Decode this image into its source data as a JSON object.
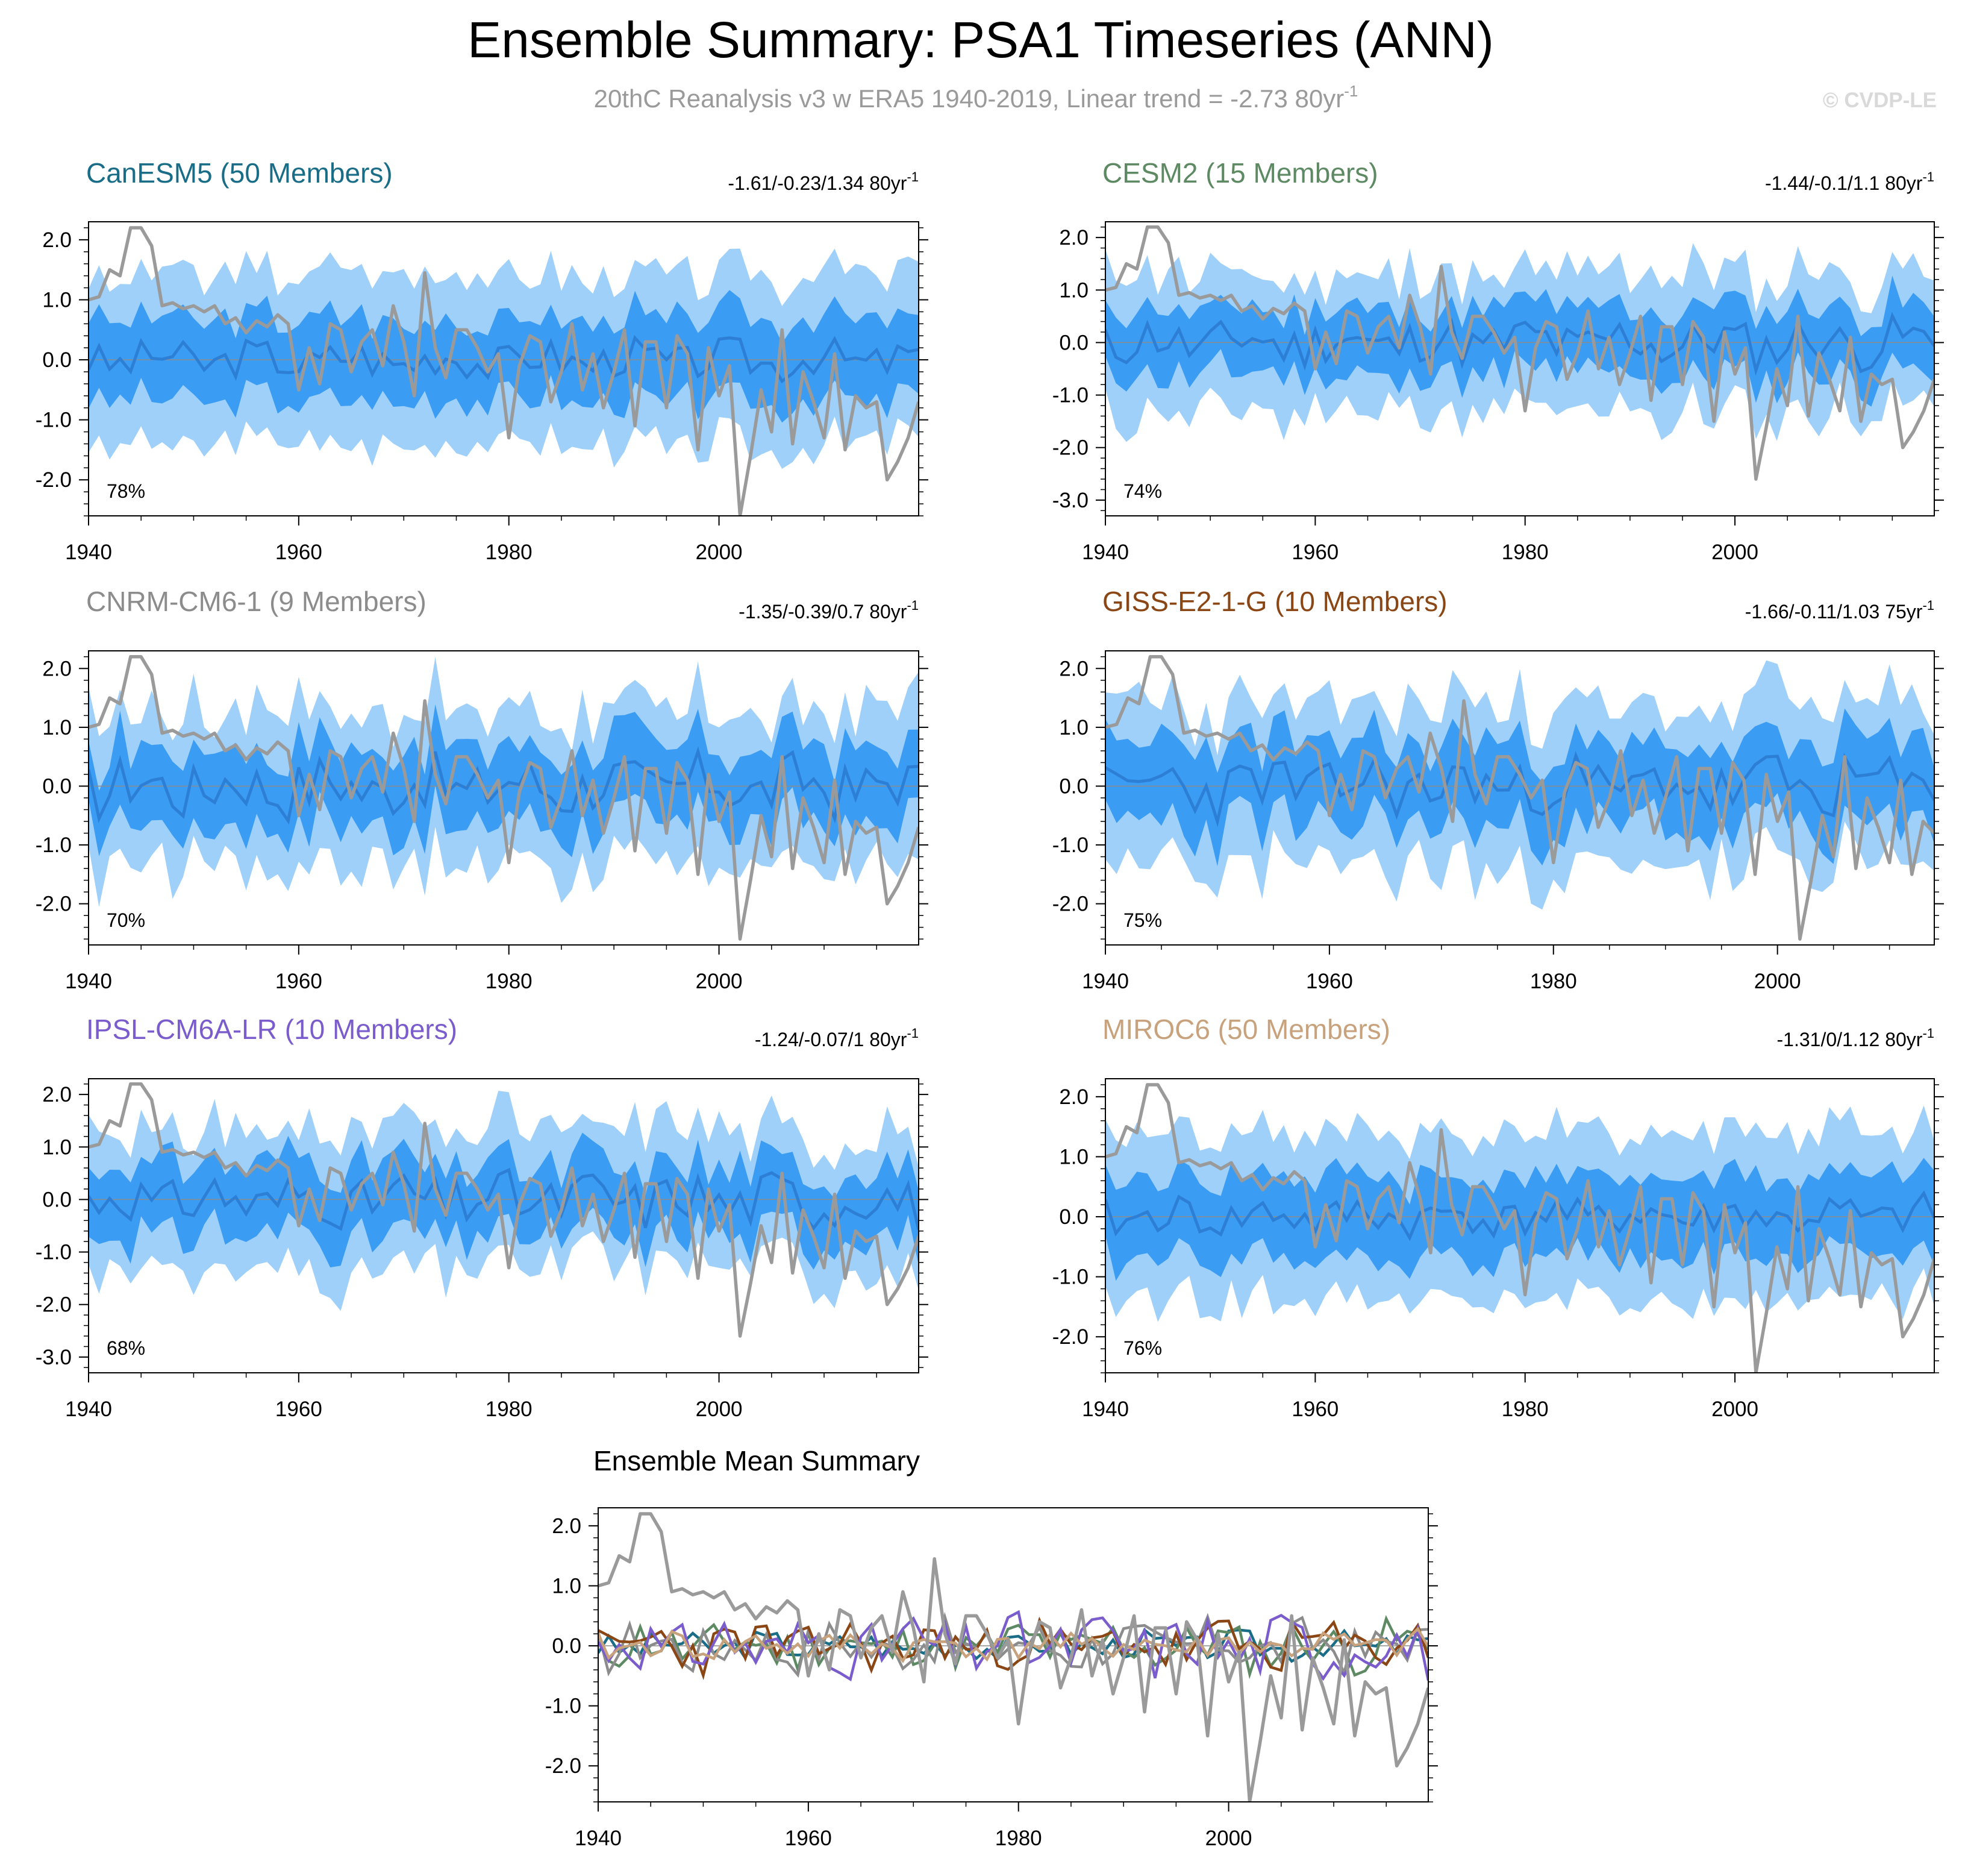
{
  "header": {
    "title": "Ensemble Summary: PSA1 Timeseries (ANN)",
    "subtitle_main": "20thC Reanalysis v3 w ERA5 1940-2019, Linear trend = -2.73 80yr",
    "subtitle_sup": "-1",
    "copyright": "© CVDP-LE"
  },
  "colors": {
    "outer_band": "#9fd0fa",
    "inner_band": "#3a9cf2",
    "ensemble_mean": "#2d7fd6",
    "observations": "#9a9a9a",
    "zero_line": "#8c8c8c"
  },
  "chart_data": [
    {
      "type": "area",
      "id": "canesm5",
      "title": "CanESM5 (50 Members)",
      "title_color": "#1a6d87",
      "trend_text": "-1.61/-0.23/1.34 80yr",
      "trend_sup": "-1",
      "percent": "78%",
      "xlim": [
        1940,
        2019
      ],
      "ylim": [
        -2.6,
        2.3
      ],
      "yticks": [
        "2.0",
        "1.0",
        "0.0",
        "-1.0",
        "-2.0"
      ],
      "xticks": [
        "1940",
        "1960",
        "1980",
        "2000"
      ],
      "x_start": 1940,
      "x_end": 2019,
      "variability": 0.55,
      "spread": 1.0,
      "seed": 3
    },
    {
      "type": "area",
      "id": "cesm2",
      "title": "CESM2 (15 Members)",
      "title_color": "#5d8a63",
      "trend_text": "-1.44/-0.1/1.1 80yr",
      "trend_sup": "-1",
      "percent": "74%",
      "xlim": [
        1940,
        2019
      ],
      "ylim": [
        -3.3,
        2.3
      ],
      "yticks": [
        "2.0",
        "1.0",
        "0.0",
        "-1.0",
        "-2.0",
        "-3.0"
      ],
      "xticks": [
        "1940",
        "1960",
        "1980",
        "2000"
      ],
      "x_start": 1940,
      "x_end": 2019,
      "variability": 0.9,
      "spread": 0.85,
      "seed": 11
    },
    {
      "type": "area",
      "id": "cnrm",
      "title": "CNRM-CM6-1 (9 Members)",
      "title_color": "#8c8c8c",
      "trend_text": "-1.35/-0.39/0.7 80yr",
      "trend_sup": "-1",
      "percent": "70%",
      "xlim": [
        1940,
        2019
      ],
      "ylim": [
        -2.7,
        2.3
      ],
      "yticks": [
        "2.0",
        "1.0",
        "0.0",
        "-1.0",
        "-2.0"
      ],
      "xticks": [
        "1940",
        "1960",
        "1980",
        "2000"
      ],
      "x_start": 1940,
      "x_end": 2019,
      "variability": 1.0,
      "spread": 0.85,
      "seed": 17
    },
    {
      "type": "area",
      "id": "giss",
      "title": "GISS-E2-1-G (10 Members)",
      "title_color": "#8a4614",
      "trend_text": "-1.66/-0.11/1.03 75yr",
      "trend_sup": "-1",
      "percent": "75%",
      "xlim": [
        1940,
        2014
      ],
      "ylim": [
        -2.7,
        2.3
      ],
      "yticks": [
        "2.0",
        "1.0",
        "0.0",
        "-1.0",
        "-2.0"
      ],
      "xticks": [
        "1940",
        "1960",
        "1980",
        "2000"
      ],
      "x_start": 1940,
      "x_end": 2014,
      "variability": 1.0,
      "spread": 0.9,
      "seed": 23
    },
    {
      "type": "area",
      "id": "ipsl",
      "title": "IPSL-CM6A-LR (10 Members)",
      "title_color": "#7a5ccc",
      "trend_text": "-1.24/-0.07/1 80yr",
      "trend_sup": "-1",
      "percent": "68%",
      "xlim": [
        1940,
        2019
      ],
      "ylim": [
        -3.3,
        2.3
      ],
      "yticks": [
        "2.0",
        "1.0",
        "0.0",
        "-1.0",
        "-2.0",
        "-3.0"
      ],
      "xticks": [
        "1940",
        "1960",
        "1980",
        "2000"
      ],
      "x_start": 1940,
      "x_end": 2019,
      "variability": 1.0,
      "spread": 0.85,
      "seed": 31
    },
    {
      "type": "area",
      "id": "miroc6",
      "title": "MIROC6 (50 Members)",
      "title_color": "#c8a27d",
      "trend_text": "-1.31/0/1.12 80yr",
      "trend_sup": "-1",
      "percent": "76%",
      "xlim": [
        1940,
        2019
      ],
      "ylim": [
        -2.6,
        2.3
      ],
      "yticks": [
        "2.0",
        "1.0",
        "0.0",
        "-1.0",
        "-2.0"
      ],
      "xticks": [
        "1940",
        "1960",
        "1980",
        "2000"
      ],
      "x_start": 1940,
      "x_end": 2019,
      "variability": 0.55,
      "spread": 1.0,
      "seed": 41
    },
    {
      "type": "line",
      "id": "ensemble-mean",
      "title": "Ensemble Mean Summary",
      "xlim": [
        1940,
        2019
      ],
      "ylim": [
        -2.6,
        2.3
      ],
      "yticks": [
        "2.0",
        "1.0",
        "0.0",
        "-1.0",
        "-2.0"
      ],
      "xticks": [
        "1940",
        "1960",
        "1980",
        "2000"
      ],
      "series": [
        {
          "name": "CanESM5",
          "color": "#1a6d87",
          "seed": 3,
          "variability": 0.25
        },
        {
          "name": "CESM2",
          "color": "#5d8a63",
          "seed": 11,
          "variability": 0.45
        },
        {
          "name": "CNRM-CM6-1",
          "color": "#8c8c8c",
          "seed": 17,
          "variability": 0.45
        },
        {
          "name": "GISS-E2-1-G",
          "color": "#8a4614",
          "seed": 23,
          "variability": 0.45
        },
        {
          "name": "IPSL-CM6A-LR",
          "color": "#7a5ccc",
          "seed": 31,
          "variability": 0.55
        },
        {
          "name": "MIROC6",
          "color": "#c8a27d",
          "seed": 41,
          "variability": 0.25
        }
      ]
    }
  ],
  "observed_series": {
    "name": "20thC Reanalysis v3 w ERA5",
    "years": [
      1940,
      2019
    ],
    "values": [
      1.0,
      1.05,
      1.5,
      1.4,
      2.2,
      2.2,
      1.9,
      0.9,
      0.95,
      0.85,
      0.9,
      0.8,
      0.9,
      0.6,
      0.7,
      0.45,
      0.65,
      0.55,
      0.75,
      0.6,
      -0.5,
      0.2,
      -0.4,
      0.6,
      0.5,
      -0.2,
      0.3,
      0.5,
      -0.1,
      0.9,
      0.3,
      -0.6,
      1.45,
      0.2,
      -0.3,
      0.5,
      0.5,
      0.2,
      -0.2,
      0.1,
      -1.3,
      -0.1,
      0.4,
      0.3,
      -0.7,
      -0.2,
      0.6,
      -0.5,
      0.1,
      -0.8,
      -0.2,
      0.5,
      -1.1,
      0.3,
      0.3,
      -0.8,
      0.4,
      0.1,
      -1.5,
      0.2,
      -0.6,
      -0.1,
      -2.6,
      -1.6,
      -0.5,
      -1.2,
      0.5,
      -1.4,
      -0.2,
      -0.7,
      -1.3,
      0.1,
      -1.5,
      -0.6,
      -0.8,
      -0.7,
      -2.0,
      -1.7,
      -1.3,
      -0.7
    ]
  }
}
